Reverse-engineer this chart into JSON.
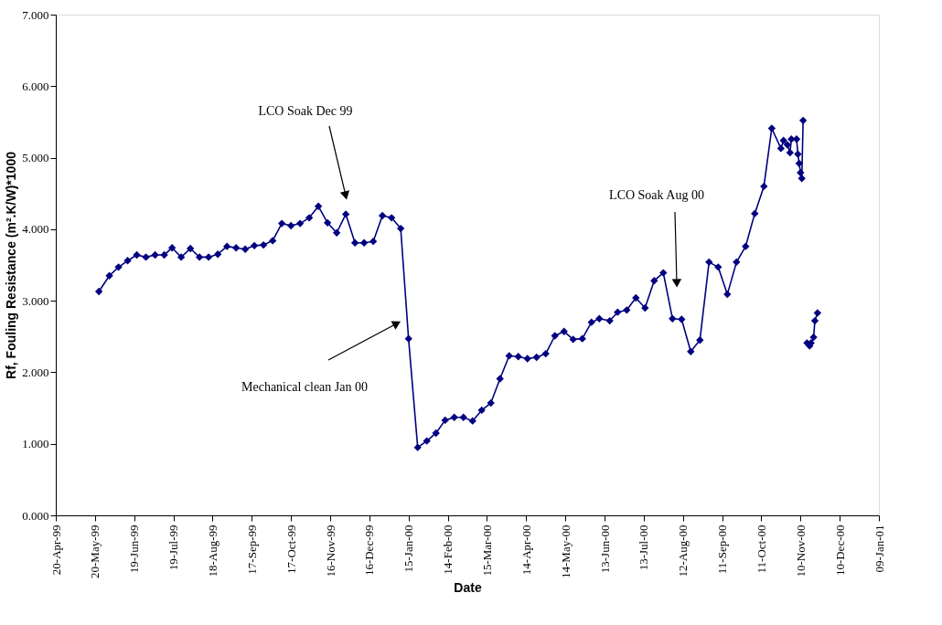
{
  "chart_data": {
    "type": "line",
    "xlabel": "Date",
    "ylabel": "Rf, Fouling Resistance (m².K/W)*1000",
    "x": [
      "1999-05-23",
      "1999-05-31",
      "1999-06-07",
      "1999-06-14",
      "1999-06-21",
      "1999-06-28",
      "1999-07-05",
      "1999-07-12",
      "1999-07-18",
      "1999-07-25",
      "1999-08-01",
      "1999-08-08",
      "1999-08-15",
      "1999-08-22",
      "1999-08-29",
      "1999-09-05",
      "1999-09-12",
      "1999-09-19",
      "1999-09-26",
      "1999-10-03",
      "1999-10-10",
      "1999-10-17",
      "1999-10-24",
      "1999-10-31",
      "1999-11-07",
      "1999-11-14",
      "1999-11-21",
      "1999-11-28",
      "1999-12-05",
      "1999-12-12",
      "1999-12-19",
      "1999-12-26",
      "2000-01-02",
      "2000-01-09",
      "2000-01-15",
      "2000-01-22",
      "2000-01-29",
      "2000-02-05",
      "2000-02-12",
      "2000-02-19",
      "2000-02-26",
      "2000-03-04",
      "2000-03-11",
      "2000-03-18",
      "2000-03-25",
      "2000-04-01",
      "2000-04-08",
      "2000-04-15",
      "2000-04-22",
      "2000-04-29",
      "2000-05-06",
      "2000-05-13",
      "2000-05-20",
      "2000-05-27",
      "2000-06-03",
      "2000-06-09",
      "2000-06-17",
      "2000-06-23",
      "2000-06-30",
      "2000-07-07",
      "2000-07-14",
      "2000-07-21",
      "2000-07-28",
      "2000-08-04",
      "2000-08-11",
      "2000-08-18",
      "2000-08-25",
      "2000-09-01",
      "2000-09-08",
      "2000-09-15",
      "2000-09-22",
      "2000-09-29",
      "2000-10-06",
      "2000-10-13",
      "2000-10-19",
      "2000-10-26",
      "2000-10-28",
      "2000-10-31",
      "2000-11-02",
      "2000-11-03",
      "2000-11-07",
      "2000-11-08",
      "2000-11-09",
      "2000-11-10",
      "2000-11-11",
      "2000-11-12",
      "2000-11-13",
      "2000-11-15",
      "2000-11-17",
      "2000-11-18",
      "2000-11-20",
      "2000-11-21",
      "2000-11-23"
    ],
    "series": [
      {
        "color": "#000080",
        "values": [
          3.13,
          3.35,
          3.47,
          3.56,
          3.64,
          3.61,
          3.64,
          3.64,
          3.74,
          3.61,
          3.73,
          3.61,
          3.61,
          3.65,
          3.76,
          3.74,
          3.72,
          3.77,
          3.78,
          3.84,
          4.08,
          4.05,
          4.08,
          4.16,
          4.32,
          4.09,
          3.95,
          4.21,
          3.81,
          3.81,
          3.83,
          4.19,
          4.16,
          4.01,
          2.47,
          0.95,
          1.04,
          1.15,
          1.33,
          1.37,
          1.37,
          1.32,
          1.47,
          1.57,
          1.91,
          2.23,
          2.22,
          2.19,
          2.21,
          2.26,
          2.51,
          2.57,
          2.46,
          2.47,
          2.7,
          2.75,
          2.72,
          2.84,
          2.87,
          3.04,
          2.9,
          3.28,
          3.39,
          2.75,
          2.74,
          2.29,
          2.45,
          3.54,
          3.47,
          3.09,
          3.54,
          3.76,
          4.22,
          4.6,
          5.41,
          5.13,
          5.24,
          5.18,
          5.07,
          5.26,
          5.26,
          5.05,
          4.92,
          4.79,
          4.71,
          5.52,
          null,
          2.41,
          2.37,
          2.41,
          2.49,
          2.72,
          2.83
        ]
      }
    ],
    "xlim": [
      "1999-04-20",
      "2001-01-09"
    ],
    "xticks": [
      {
        "value": "1999-04-20",
        "label": "20-Apr-99"
      },
      {
        "value": "1999-05-20",
        "label": "20-May-99"
      },
      {
        "value": "1999-06-19",
        "label": "19-Jun-99"
      },
      {
        "value": "1999-07-19",
        "label": "19-Jul-99"
      },
      {
        "value": "1999-08-18",
        "label": "18-Aug-99"
      },
      {
        "value": "1999-09-17",
        "label": "17-Sep-99"
      },
      {
        "value": "1999-10-17",
        "label": "17-Oct-99"
      },
      {
        "value": "1999-11-16",
        "label": "16-Nov-99"
      },
      {
        "value": "1999-12-16",
        "label": "16-Dec-99"
      },
      {
        "value": "2000-01-15",
        "label": "15-Jan-00"
      },
      {
        "value": "2000-02-14",
        "label": "14-Feb-00"
      },
      {
        "value": "2000-03-15",
        "label": "15-Mar-00"
      },
      {
        "value": "2000-04-14",
        "label": "14-Apr-00"
      },
      {
        "value": "2000-05-14",
        "label": "14-May-00"
      },
      {
        "value": "2000-06-13",
        "label": "13-Jun-00"
      },
      {
        "value": "2000-07-13",
        "label": "13-Jul-00"
      },
      {
        "value": "2000-08-12",
        "label": "12-Aug-00"
      },
      {
        "value": "2000-09-11",
        "label": "11-Sep-00"
      },
      {
        "value": "2000-10-11",
        "label": "11-Oct-00"
      },
      {
        "value": "2000-11-10",
        "label": "10-Nov-00"
      },
      {
        "value": "2000-12-10",
        "label": "10-Dec-00"
      },
      {
        "value": "2001-01-09",
        "label": "09-Jan-01"
      }
    ],
    "ylim": [
      0,
      7
    ],
    "yticks": [
      {
        "value": 0,
        "label": "0.000"
      },
      {
        "value": 1,
        "label": "1.000"
      },
      {
        "value": 2,
        "label": "2.000"
      },
      {
        "value": 3,
        "label": "3.000"
      },
      {
        "value": 4,
        "label": "4.000"
      },
      {
        "value": 5,
        "label": "5.000"
      },
      {
        "value": 6,
        "label": "6.000"
      },
      {
        "value": 7,
        "label": "7.000"
      }
    ],
    "annotations": [
      "LCO Soak Dec 99",
      "Mechanical clean Jan 00",
      "LCO Soak Aug 00"
    ],
    "marker": "diamond",
    "line_style": "solid"
  }
}
